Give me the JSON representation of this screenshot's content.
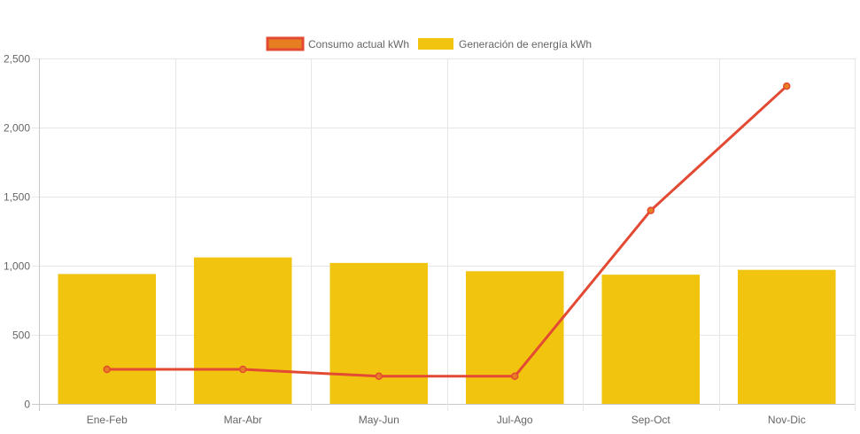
{
  "chart_data": {
    "type": "bar",
    "categories": [
      "Ene-Feb",
      "Mar-Abr",
      "May-Jun",
      "Jul-Ago",
      "Sep-Oct",
      "Nov-Dic"
    ],
    "series": [
      {
        "name": "Consumo actual kWh",
        "type": "line",
        "values": [
          250,
          250,
          200,
          200,
          1400,
          2300
        ],
        "color": "#e34a33",
        "fill": "#e67e22"
      },
      {
        "name": "Generación de energía kWh",
        "type": "bar",
        "values": [
          940,
          1060,
          1020,
          960,
          935,
          970
        ],
        "color": "#f1c40f"
      }
    ],
    "ylim": [
      0,
      2500
    ],
    "yticks": [
      0,
      500,
      1000,
      1500,
      2000,
      2500
    ],
    "ytick_labels": [
      "0",
      "500",
      "1,000",
      "1,500",
      "2,000",
      "2,500"
    ],
    "grid": true,
    "legend": "top-center",
    "title": "",
    "xlabel": "",
    "ylabel": ""
  }
}
